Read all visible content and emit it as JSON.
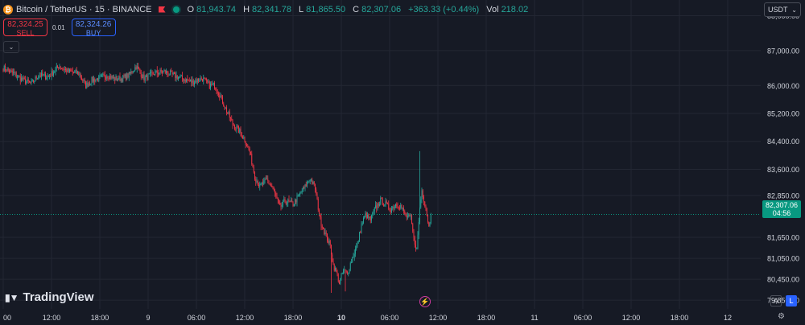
{
  "legend": {
    "coin_symbol": "₿",
    "title": "Bitcoin / TetherUS · 15 · BINANCE",
    "ohlc": [
      {
        "k": "O",
        "v": "81,943.74"
      },
      {
        "k": "H",
        "v": "82,341.78"
      },
      {
        "k": "L",
        "v": "81,865.50"
      },
      {
        "k": "C",
        "v": "82,307.06"
      },
      {
        "k": "",
        "v": "+363.33 (+0.44%)"
      },
      {
        "k": "Vol",
        "v": "218.02"
      }
    ]
  },
  "trade": {
    "sell_price": "82,324.25",
    "sell_label": "SELL",
    "qty": "0.01",
    "buy_price": "82,324.26",
    "buy_label": "BUY"
  },
  "currency": {
    "label": "USDT"
  },
  "price_badge": {
    "price": "82,307.06",
    "countdown": "04:56"
  },
  "logo": {
    "text": "TradingView"
  },
  "mode_buttons": {
    "auto": "A",
    "log": "L"
  },
  "colors": {
    "up": "#26a69a",
    "down": "#f23645",
    "grid": "#232733",
    "bg": "#161a25",
    "axis_text": "#d1d4dc"
  },
  "chart_data": {
    "type": "candlestick",
    "y_range": [
      79600,
      88450
    ],
    "y_ticks": [
      {
        "v": 88000,
        "label": "88,000.00"
      },
      {
        "v": 87000,
        "label": "87,000.00"
      },
      {
        "v": 86000,
        "label": "86,000.00"
      },
      {
        "v": 85200,
        "label": "85,200.00"
      },
      {
        "v": 84400,
        "label": "84,400.00"
      },
      {
        "v": 83600,
        "label": "83,600.00"
      },
      {
        "v": 82850,
        "label": "82,850.00"
      },
      {
        "v": 81650,
        "label": "81,650.00"
      },
      {
        "v": 81050,
        "label": "81,050.00"
      },
      {
        "v": 80450,
        "label": "80,450.00"
      },
      {
        "v": 79850,
        "label": "79,850.00"
      }
    ],
    "x_ticks": [
      {
        "bar": 0,
        "label": "00",
        "bold": false
      },
      {
        "bar": 48,
        "label": "12:00",
        "bold": false
      },
      {
        "bar": 96,
        "label": "18:00",
        "bold": false
      },
      {
        "bar": 144,
        "label": "9",
        "bold": false
      },
      {
        "bar": 192,
        "label": "06:00",
        "bold": false
      },
      {
        "bar": 240,
        "label": "12:00",
        "bold": false
      },
      {
        "bar": 288,
        "label": "18:00",
        "bold": false
      },
      {
        "bar": 336,
        "label": "10",
        "bold": true
      },
      {
        "bar": 384,
        "label": "06:00",
        "bold": false
      },
      {
        "bar": 432,
        "label": "12:00",
        "bold": false
      },
      {
        "bar": 480,
        "label": "18:00",
        "bold": false
      },
      {
        "bar": 528,
        "label": "11",
        "bold": false
      },
      {
        "bar": 576,
        "label": "06:00",
        "bold": false
      },
      {
        "bar": 624,
        "label": "12:00",
        "bold": false
      },
      {
        "bar": 672,
        "label": "18:00",
        "bold": false
      },
      {
        "bar": 720,
        "label": "12",
        "bold": false
      }
    ],
    "close_anchors": [
      [
        0,
        86500
      ],
      [
        10,
        86350
      ],
      [
        20,
        86150
      ],
      [
        28,
        86050
      ],
      [
        35,
        86300
      ],
      [
        45,
        86250
      ],
      [
        55,
        86550
      ],
      [
        65,
        86400
      ],
      [
        75,
        86350
      ],
      [
        82,
        86000
      ],
      [
        88,
        86150
      ],
      [
        95,
        86200
      ],
      [
        103,
        86300
      ],
      [
        110,
        86200
      ],
      [
        118,
        86200
      ],
      [
        125,
        86300
      ],
      [
        132,
        86550
      ],
      [
        140,
        86200
      ],
      [
        150,
        86350
      ],
      [
        160,
        86400
      ],
      [
        168,
        86300
      ],
      [
        178,
        86200
      ],
      [
        188,
        86100
      ],
      [
        198,
        86200
      ],
      [
        205,
        86000
      ],
      [
        210,
        86000
      ],
      [
        215,
        85750
      ],
      [
        220,
        85400
      ],
      [
        228,
        84900
      ],
      [
        236,
        84650
      ],
      [
        240,
        84450
      ],
      [
        245,
        84100
      ],
      [
        250,
        83400
      ],
      [
        255,
        83100
      ],
      [
        262,
        83300
      ],
      [
        268,
        83050
      ],
      [
        275,
        82500
      ],
      [
        280,
        82700
      ],
      [
        288,
        82600
      ],
      [
        294,
        82850
      ],
      [
        300,
        83100
      ],
      [
        305,
        83350
      ],
      [
        310,
        83050
      ],
      [
        315,
        82150
      ],
      [
        320,
        81750
      ],
      [
        325,
        81400
      ],
      [
        328,
        80850
      ],
      [
        331,
        80650
      ],
      [
        334,
        80350
      ],
      [
        338,
        80700
      ],
      [
        342,
        80600
      ],
      [
        345,
        80900
      ],
      [
        348,
        81150
      ],
      [
        352,
        81450
      ],
      [
        356,
        82000
      ],
      [
        360,
        82300
      ],
      [
        365,
        82150
      ],
      [
        370,
        82500
      ],
      [
        375,
        82700
      ],
      [
        380,
        82600
      ],
      [
        385,
        82450
      ],
      [
        390,
        82600
      ],
      [
        395,
        82550
      ],
      [
        400,
        82250
      ],
      [
        405,
        82200
      ],
      [
        408,
        81600
      ],
      [
        411,
        81300
      ],
      [
        414,
        82500
      ],
      [
        416,
        83000
      ],
      [
        420,
        82500
      ],
      [
        423,
        81950
      ],
      [
        425,
        82307
      ]
    ],
    "last_index": 425,
    "last_close": 82307.06
  }
}
